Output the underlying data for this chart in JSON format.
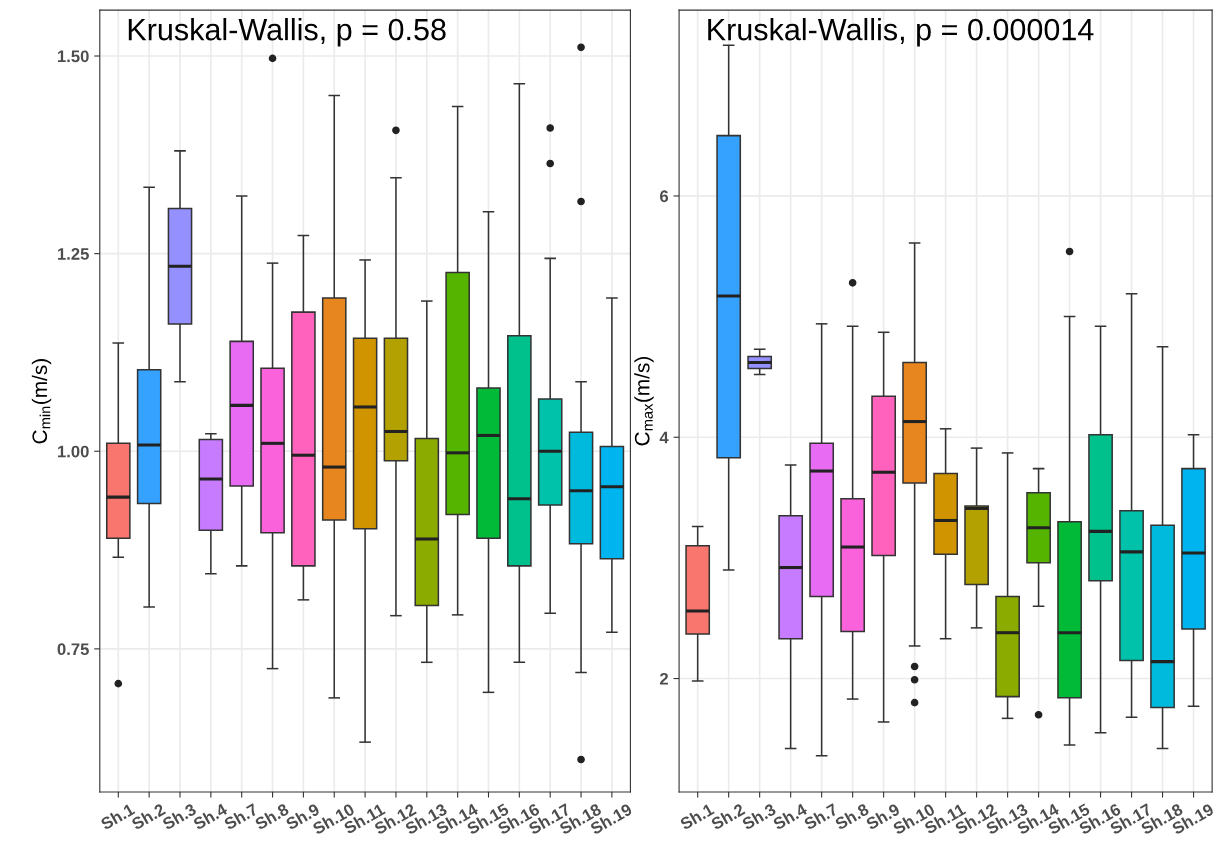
{
  "chart_data": [
    {
      "type": "box",
      "annotations": [
        "Kruskal-Wallis, p = 0.58"
      ],
      "ylabel": "C$_{min}$(m/s)",
      "categories": [
        "Sh.1",
        "Sh.2",
        "Sh.3",
        "Sh.4",
        "Sh.7",
        "Sh.8",
        "Sh.9",
        "Sh.10",
        "Sh.11",
        "Sh.12",
        "Sh.13",
        "Sh.14",
        "Sh.15",
        "Sh.16",
        "Sh.17",
        "Sh.18",
        "Sh.19"
      ],
      "colors": [
        "#F8766D",
        "#35A2FF",
        "#9590FF",
        "#C77CFF",
        "#E76BF3",
        "#FA62DB",
        "#FF62BC",
        "#E7851E",
        "#D09400",
        "#B2A100",
        "#8BAB00",
        "#55B400",
        "#00BA38",
        "#00C08B",
        "#00C1AA",
        "#00BADE",
        "#00B4F0"
      ],
      "boxes": [
        {
          "low": 0.866,
          "q1": 0.89,
          "median": 0.942,
          "q3": 1.01,
          "high": 1.137,
          "outliers": [
            0.706
          ]
        },
        {
          "low": 0.803,
          "q1": 0.934,
          "median": 1.008,
          "q3": 1.103,
          "high": 1.334
        },
        {
          "low": 1.088,
          "q1": 1.161,
          "median": 1.234,
          "q3": 1.307,
          "high": 1.38
        },
        {
          "low": 0.845,
          "q1": 0.9,
          "median": 0.965,
          "q3": 1.015,
          "high": 1.022
        },
        {
          "low": 0.855,
          "q1": 0.956,
          "median": 1.058,
          "q3": 1.139,
          "high": 1.323
        },
        {
          "low": 0.725,
          "q1": 0.897,
          "median": 1.01,
          "q3": 1.105,
          "high": 1.238,
          "outliers": [
            1.497
          ]
        },
        {
          "low": 0.812,
          "q1": 0.855,
          "median": 0.995,
          "q3": 1.176,
          "high": 1.273
        },
        {
          "low": 0.688,
          "q1": 0.913,
          "median": 0.98,
          "q3": 1.194,
          "high": 1.45
        },
        {
          "low": 0.632,
          "q1": 0.902,
          "median": 1.056,
          "q3": 1.143,
          "high": 1.242
        },
        {
          "low": 0.792,
          "q1": 0.988,
          "median": 1.025,
          "q3": 1.143,
          "high": 1.346,
          "outliers": [
            1.406
          ]
        },
        {
          "low": 0.733,
          "q1": 0.805,
          "median": 0.889,
          "q3": 1.016,
          "high": 1.19
        },
        {
          "low": 0.793,
          "q1": 0.92,
          "median": 0.998,
          "q3": 1.226,
          "high": 1.436
        },
        {
          "low": 0.695,
          "q1": 0.89,
          "median": 1.02,
          "q3": 1.08,
          "high": 1.303
        },
        {
          "low": 0.733,
          "q1": 0.855,
          "median": 0.94,
          "q3": 1.146,
          "high": 1.465
        },
        {
          "low": 0.795,
          "q1": 0.932,
          "median": 1.0,
          "q3": 1.066,
          "high": 1.244,
          "outliers": [
            1.409,
            1.364
          ]
        },
        {
          "low": 0.72,
          "q1": 0.883,
          "median": 0.95,
          "q3": 1.024,
          "high": 1.088,
          "outliers": [
            1.511,
            1.316,
            0.61
          ]
        },
        {
          "low": 0.771,
          "q1": 0.864,
          "median": 0.955,
          "q3": 1.006,
          "high": 1.194
        }
      ],
      "ylim": [
        0.569,
        1.558
      ],
      "yticks": [
        0.75,
        {
          "value": 1.0,
          "label": "1.00"
        },
        {
          "value": 1.25,
          "label": "1.25"
        },
        {
          "value": 1.5,
          "label": "1.50"
        }
      ],
      "grid": true
    },
    {
      "type": "box",
      "annotations": [
        "Kruskal-Wallis, p = 0.000014"
      ],
      "ylabel": "C$_{max}$(m/s)",
      "categories": [
        "Sh.1",
        "Sh.2",
        "Sh.3",
        "Sh.4",
        "Sh.7",
        "Sh.8",
        "Sh.9",
        "Sh.10",
        "Sh.11",
        "Sh.12",
        "Sh.13",
        "Sh.14",
        "Sh.15",
        "Sh.16",
        "Sh.17",
        "Sh.18",
        "Sh.19"
      ],
      "colors": [
        "#F8766D",
        "#35A2FF",
        "#9590FF",
        "#C77CFF",
        "#E76BF3",
        "#FA62DB",
        "#FF62BC",
        "#E7851E",
        "#D09400",
        "#B2A100",
        "#8BAB00",
        "#55B400",
        "#00BA38",
        "#00C08B",
        "#00C1AA",
        "#00BADE",
        "#00B4F0"
      ],
      "boxes": [
        {
          "low": 1.98,
          "q1": 2.37,
          "median": 2.56,
          "q3": 3.1,
          "high": 3.26
        },
        {
          "low": 2.9,
          "q1": 3.83,
          "median": 5.17,
          "q3": 6.5,
          "high": 7.25
        },
        {
          "low": 4.52,
          "q1": 4.57,
          "median": 4.62,
          "q3": 4.67,
          "high": 4.73
        },
        {
          "low": 1.42,
          "q1": 2.33,
          "median": 2.92,
          "q3": 3.35,
          "high": 3.77
        },
        {
          "low": 1.36,
          "q1": 2.68,
          "median": 3.72,
          "q3": 3.95,
          "high": 4.94
        },
        {
          "low": 1.83,
          "q1": 2.39,
          "median": 3.09,
          "q3": 3.49,
          "high": 4.92,
          "outliers": [
            5.28
          ]
        },
        {
          "low": 1.64,
          "q1": 3.02,
          "median": 3.71,
          "q3": 4.34,
          "high": 4.87
        },
        {
          "low": 2.27,
          "q1": 3.62,
          "median": 4.13,
          "q3": 4.62,
          "high": 5.61,
          "outliers": [
            2.1,
            1.99,
            1.8
          ]
        },
        {
          "low": 2.33,
          "q1": 3.03,
          "median": 3.31,
          "q3": 3.7,
          "high": 4.07
        },
        {
          "low": 2.42,
          "q1": 2.78,
          "median": 3.41,
          "q3": 3.43,
          "high": 3.91
        },
        {
          "low": 1.67,
          "q1": 1.85,
          "median": 2.38,
          "q3": 2.68,
          "high": 3.87
        },
        {
          "low": 2.6,
          "q1": 2.96,
          "median": 3.25,
          "q3": 3.54,
          "high": 3.74,
          "outliers": [
            1.7
          ]
        },
        {
          "low": 1.45,
          "q1": 1.84,
          "median": 2.38,
          "q3": 3.3,
          "high": 5.0,
          "outliers": [
            5.54
          ]
        },
        {
          "low": 1.55,
          "q1": 2.81,
          "median": 3.22,
          "q3": 4.02,
          "high": 4.92
        },
        {
          "low": 1.68,
          "q1": 2.15,
          "median": 3.05,
          "q3": 3.39,
          "high": 5.19
        },
        {
          "low": 1.42,
          "q1": 1.76,
          "median": 2.14,
          "q3": 3.27,
          "high": 4.75
        },
        {
          "low": 1.77,
          "q1": 2.41,
          "median": 3.04,
          "q3": 3.74,
          "high": 4.02
        }
      ],
      "ylim": [
        1.06,
        7.54
      ],
      "yticks": [
        2,
        4,
        6
      ],
      "grid": true
    }
  ]
}
